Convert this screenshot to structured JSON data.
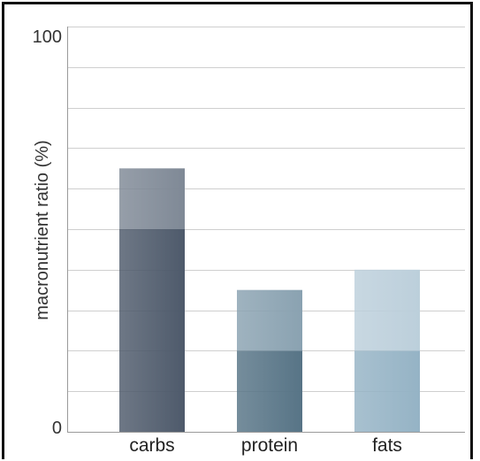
{
  "chart_data": {
    "type": "bar",
    "stacked": true,
    "categories": [
      "carbs",
      "protein",
      "fats"
    ],
    "segments": [
      [
        50,
        15
      ],
      [
        20,
        15
      ],
      [
        20,
        20
      ]
    ],
    "ylabel": "macronutrient ratio (%)",
    "ylim": [
      0,
      100
    ],
    "yticks_labeled": [
      "0",
      "100"
    ],
    "grid_step": 10,
    "grid": true,
    "colors": {
      "carbs": [
        "#4e5a6b",
        "#7f8996"
      ],
      "protein": [
        "#577486",
        "#8aa2b1"
      ],
      "fats": [
        "#95b3c5",
        "#bccfdb"
      ]
    }
  }
}
